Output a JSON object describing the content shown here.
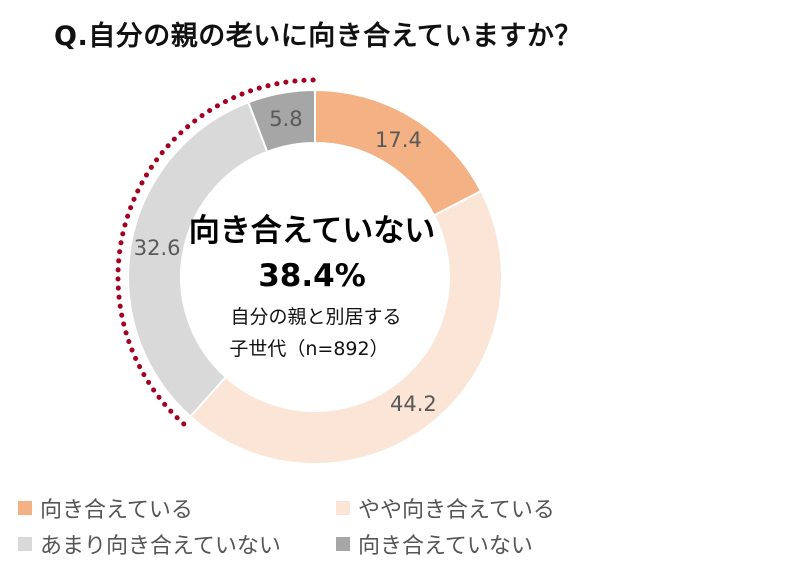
{
  "title": "Q.自分の親の老いに向き合えていますか？",
  "center": {
    "headline": "向き合えていない",
    "value": "38.4%",
    "sub_line1": "自分の親と別居する",
    "sub_line2": "子世代（n=892）"
  },
  "chart_data": {
    "type": "pie",
    "title": "Q.自分の親の老いに向き合えていますか？",
    "categories": [
      "向き合えている",
      "やや向き合えている",
      "あまり向き合えていない",
      "向き合えていない"
    ],
    "values": [
      17.4,
      44.2,
      32.6,
      5.8
    ],
    "value_labels": [
      "17.4",
      "44.2",
      "32.6",
      "5.8"
    ],
    "colors": [
      "#F4B183",
      "#FBE5D6",
      "#D9D9D9",
      "#A6A6A6"
    ],
    "donut": true,
    "highlight": {
      "categories": [
        "あまり向き合えていない",
        "向き合えていない"
      ],
      "color": "#A50021",
      "style": "dotted-arc"
    },
    "legend": "bottom"
  }
}
